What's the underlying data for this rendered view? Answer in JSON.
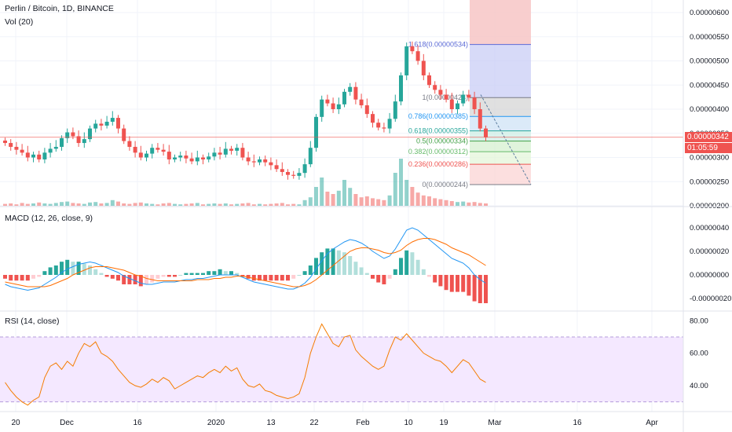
{
  "header": {
    "symbol_line": "Perlin / Bitcoin, 1D, BINANCE",
    "volume_label": "Vol (20)"
  },
  "panes": {
    "macd_label": "MACD (12, 26, close, 9)",
    "rsi_label": "RSI (14, close)"
  },
  "price_axis": {
    "ticks": [
      "0.00000600",
      "0.00000550",
      "0.00000500",
      "0.00000450",
      "0.00000400",
      "0.00000350",
      "0.00000300",
      "0.00000250",
      "0.00000200"
    ],
    "last_price": "0.00000342",
    "countdown": "01:05:59"
  },
  "macd_axis": {
    "ticks": [
      "0.00000040",
      "0.00000020",
      "0.00000000",
      "-0.00000020"
    ]
  },
  "rsi_axis": {
    "ticks": [
      "80.00",
      "60.00",
      "40.00"
    ]
  },
  "time_axis": {
    "labels": [
      "20",
      "Dec",
      "16",
      "2020",
      "13",
      "22",
      "Feb",
      "10",
      "19",
      "Mar",
      "16",
      "Apr"
    ]
  },
  "fib": {
    "levels": [
      {
        "label": "1.618(0.00000534)",
        "value": 534
      },
      {
        "label": "1(0.00000424)",
        "value": 424
      },
      {
        "label": "0.786(0.00000385)",
        "value": 385
      },
      {
        "label": "0.618(0.00000355)",
        "value": 355
      },
      {
        "label": "0.5(0.00000334)",
        "value": 334
      },
      {
        "label": "0.382(0.00000312)",
        "value": 312
      },
      {
        "label": "0.236(0.00000286)",
        "value": 286
      },
      {
        "label": "0(0.00000244)",
        "value": 244
      }
    ]
  },
  "colors": {
    "up": "#26a69a",
    "down": "#ef5350",
    "grid": "#f0f3fa",
    "axis_text": "#131722",
    "last_price_bg": "#ef5350",
    "rsi_band": "#f3e5ff",
    "rsi_line": "#f57c00",
    "macd_line": "#2196f3",
    "signal_line": "#ff6d00"
  },
  "chart_data": {
    "type": "candlestick",
    "closes": [
      330,
      322,
      316,
      310,
      300,
      306,
      296,
      310,
      318,
      322,
      340,
      352,
      344,
      330,
      338,
      360,
      370,
      366,
      374,
      382,
      360,
      334,
      322,
      310,
      300,
      308,
      320,
      316,
      312,
      296,
      300,
      304,
      298,
      292,
      300,
      296,
      302,
      310,
      306,
      318,
      314,
      320,
      300,
      292,
      290,
      296,
      290,
      284,
      276,
      270,
      264,
      262,
      268,
      286,
      320,
      384,
      420,
      412,
      400,
      410,
      436,
      446,
      420,
      408,
      390,
      372,
      362,
      360,
      380,
      416,
      470,
      530,
      520,
      500,
      470,
      450,
      440,
      430,
      420,
      400,
      412,
      430,
      424,
      400,
      360,
      342
    ],
    "rsi": [
      42,
      37,
      33,
      30,
      28,
      31,
      33,
      45,
      52,
      54,
      50,
      55,
      52,
      60,
      66,
      64,
      67,
      60,
      58,
      55,
      50,
      46,
      42,
      40,
      39,
      41,
      44,
      42,
      45,
      43,
      38,
      40,
      42,
      44,
      46,
      45,
      48,
      50,
      48,
      52,
      49,
      51,
      44,
      40,
      39,
      41,
      37,
      36,
      34,
      33,
      32,
      33,
      35,
      45,
      60,
      70,
      78,
      72,
      66,
      64,
      70,
      71,
      62,
      58,
      55,
      52,
      50,
      52,
      62,
      70,
      68,
      72,
      68,
      64,
      60,
      58,
      56,
      55,
      52,
      48,
      52,
      56,
      54,
      49,
      44,
      42
    ],
    "macd": [
      -8,
      -10,
      -11,
      -12,
      -13,
      -12,
      -11,
      -8,
      -5,
      -2,
      2,
      5,
      7,
      9,
      10,
      11,
      10,
      8,
      6,
      4,
      2,
      -1,
      -3,
      -5,
      -7,
      -8,
      -8,
      -7,
      -6,
      -6,
      -6,
      -5,
      -4,
      -4,
      -3,
      -3,
      -2,
      -1,
      0,
      0,
      0,
      0,
      -2,
      -4,
      -6,
      -7,
      -8,
      -9,
      -10,
      -11,
      -12,
      -12,
      -10,
      -7,
      -2,
      5,
      12,
      18,
      22,
      25,
      28,
      30,
      29,
      27,
      24,
      20,
      17,
      14,
      16,
      22,
      30,
      38,
      40,
      38,
      34,
      30,
      26,
      22,
      18,
      14,
      12,
      10,
      6,
      0,
      -4,
      -7
    ],
    "signal": [
      -6,
      -7,
      -8,
      -9,
      -10,
      -10,
      -10,
      -10,
      -9,
      -7,
      -5,
      -3,
      0,
      2,
      4,
      6,
      7,
      7,
      7,
      6,
      5,
      4,
      2,
      0,
      -1,
      -3,
      -4,
      -5,
      -5,
      -5,
      -5,
      -5,
      -5,
      -5,
      -4,
      -4,
      -4,
      -3,
      -3,
      -2,
      -2,
      -1,
      -1,
      -2,
      -3,
      -4,
      -5,
      -6,
      -7,
      -8,
      -9,
      -10,
      -10,
      -9,
      -7,
      -4,
      0,
      4,
      8,
      12,
      16,
      20,
      22,
      23,
      23,
      22,
      21,
      19,
      18,
      19,
      21,
      25,
      28,
      30,
      31,
      31,
      30,
      28,
      26,
      23,
      21,
      19,
      17,
      14,
      11,
      8
    ],
    "volume": [
      4,
      5,
      3,
      6,
      4,
      5,
      7,
      5,
      4,
      6,
      8,
      9,
      6,
      5,
      4,
      7,
      8,
      5,
      6,
      12,
      9,
      5,
      4,
      6,
      7,
      5,
      4,
      3,
      5,
      6,
      4,
      3,
      4,
      5,
      6,
      3,
      4,
      5,
      4,
      5,
      3,
      4,
      5,
      6,
      3,
      4,
      3,
      4,
      5,
      6,
      3,
      4,
      3,
      12,
      18,
      40,
      60,
      30,
      25,
      32,
      55,
      38,
      25,
      18,
      20,
      16,
      14,
      12,
      22,
      70,
      100,
      55,
      40,
      28,
      22,
      20,
      16,
      14,
      12,
      10,
      8,
      9,
      7,
      8,
      6,
      5
    ]
  }
}
